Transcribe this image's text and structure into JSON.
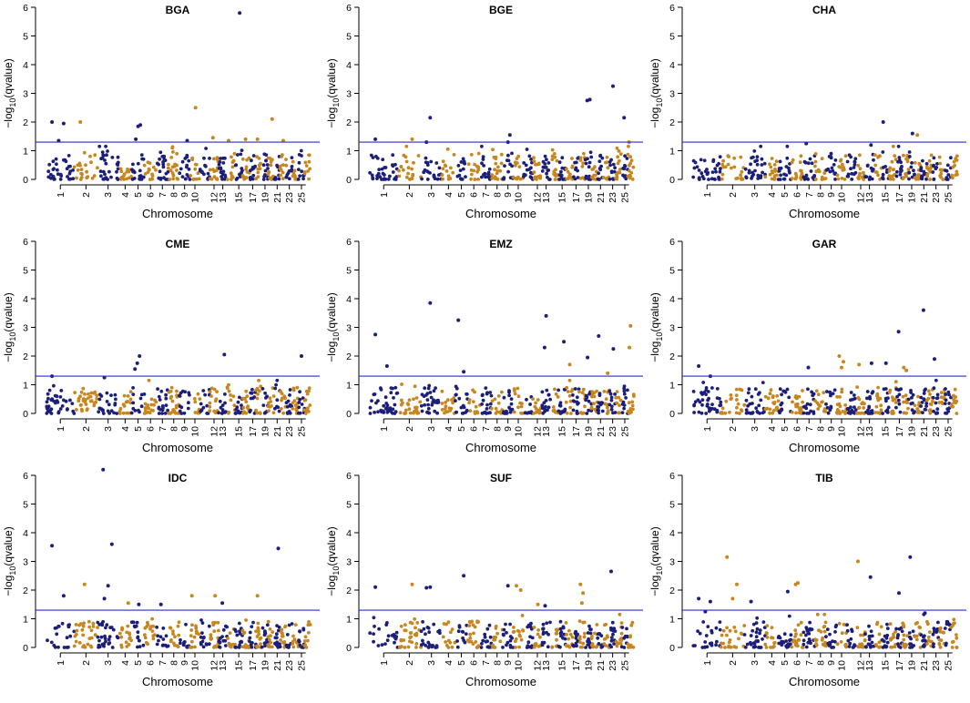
{
  "colors": {
    "navy": "#1c1f7a",
    "gold": "#c8861e",
    "threshold": "#2a2ad0"
  },
  "chart_data": {
    "type": "scatter",
    "ylabel": "−log10(qvalue)",
    "ylabel_main": "−log",
    "ylabel_sub": "10",
    "ylabel_tail": "(qvalue)",
    "xlabel": "Chromosome",
    "ylim": [
      0,
      6
    ],
    "ytick_labels": [
      "0",
      "1",
      "2",
      "3",
      "4",
      "5",
      "6"
    ],
    "xtick_labels": [
      "1",
      "2",
      "3",
      "4",
      "5",
      "6",
      "7",
      "8",
      "9",
      "10",
      "12",
      "13",
      "15",
      "17",
      "19",
      "21",
      "23",
      "25"
    ],
    "threshold": 1.3,
    "panels": [
      {
        "title": "BGA",
        "outliers": [
          {
            "chr": 1,
            "y": 2.0
          },
          {
            "chr": 1,
            "y": 1.95
          },
          {
            "chr": 1,
            "y": 1.35
          },
          {
            "chr": 2,
            "y": 2.0
          },
          {
            "chr": 5,
            "y": 1.9
          },
          {
            "chr": 5,
            "y": 1.85
          },
          {
            "chr": 5,
            "y": 1.4
          },
          {
            "chr": 9,
            "y": 1.35
          },
          {
            "chr": 10,
            "y": 2.5
          },
          {
            "chr": 12,
            "y": 1.45
          },
          {
            "chr": 14,
            "y": 1.35
          },
          {
            "chr": 15,
            "y": 5.8
          },
          {
            "chr": 16,
            "y": 1.4
          },
          {
            "chr": 18,
            "y": 1.4
          },
          {
            "chr": 20,
            "y": 2.1
          },
          {
            "chr": 22,
            "y": 1.35
          }
        ]
      },
      {
        "title": "BGE",
        "outliers": [
          {
            "chr": 1,
            "y": 1.4
          },
          {
            "chr": 2,
            "y": 1.4
          },
          {
            "chr": 3,
            "y": 2.15
          },
          {
            "chr": 3,
            "y": 1.3
          },
          {
            "chr": 9,
            "y": 1.55
          },
          {
            "chr": 9,
            "y": 1.3
          },
          {
            "chr": 19,
            "y": 2.75
          },
          {
            "chr": 19,
            "y": 2.78
          },
          {
            "chr": 23,
            "y": 3.25
          },
          {
            "chr": 25,
            "y": 2.15
          },
          {
            "chr": 26,
            "y": 1.3
          }
        ]
      },
      {
        "title": "CHA",
        "outliers": [
          {
            "chr": 15,
            "y": 2.0
          },
          {
            "chr": 19,
            "y": 1.6
          },
          {
            "chr": 20,
            "y": 1.55
          },
          {
            "chr": 7,
            "y": 1.25
          },
          {
            "chr": 13,
            "y": 1.2
          }
        ]
      },
      {
        "title": "CME",
        "outliers": [
          {
            "chr": 1,
            "y": 1.3
          },
          {
            "chr": 5,
            "y": 2.0
          },
          {
            "chr": 5,
            "y": 1.75
          },
          {
            "chr": 5,
            "y": 1.55
          },
          {
            "chr": 13,
            "y": 2.05
          },
          {
            "chr": 25,
            "y": 2.0
          },
          {
            "chr": 3,
            "y": 1.25
          }
        ]
      },
      {
        "title": "EMZ",
        "outliers": [
          {
            "chr": 1,
            "y": 2.75
          },
          {
            "chr": 1,
            "y": 1.65
          },
          {
            "chr": 3,
            "y": 3.85
          },
          {
            "chr": 5,
            "y": 3.25
          },
          {
            "chr": 5,
            "y": 1.45
          },
          {
            "chr": 13,
            "y": 3.4
          },
          {
            "chr": 13,
            "y": 2.3
          },
          {
            "chr": 15,
            "y": 2.5
          },
          {
            "chr": 16,
            "y": 1.7
          },
          {
            "chr": 19,
            "y": 1.95
          },
          {
            "chr": 21,
            "y": 2.7
          },
          {
            "chr": 23,
            "y": 2.25
          },
          {
            "chr": 26,
            "y": 3.05
          },
          {
            "chr": 26,
            "y": 2.3
          },
          {
            "chr": 22,
            "y": 1.4
          }
        ]
      },
      {
        "title": "GAR",
        "outliers": [
          {
            "chr": 1,
            "y": 1.65
          },
          {
            "chr": 1,
            "y": 1.3
          },
          {
            "chr": 7,
            "y": 1.6
          },
          {
            "chr": 10,
            "y": 2.0
          },
          {
            "chr": 10,
            "y": 1.8
          },
          {
            "chr": 10,
            "y": 1.6
          },
          {
            "chr": 12,
            "y": 1.7
          },
          {
            "chr": 13,
            "y": 1.75
          },
          {
            "chr": 15,
            "y": 1.75
          },
          {
            "chr": 17,
            "y": 2.85
          },
          {
            "chr": 18,
            "y": 1.6
          },
          {
            "chr": 18,
            "y": 1.5
          },
          {
            "chr": 21,
            "y": 3.6
          },
          {
            "chr": 23,
            "y": 1.9
          }
        ]
      },
      {
        "title": "IDC",
        "outliers": [
          {
            "chr": 1,
            "y": 3.55
          },
          {
            "chr": 1,
            "y": 1.8
          },
          {
            "chr": 2,
            "y": 2.2
          },
          {
            "chr": 3,
            "y": 6.2
          },
          {
            "chr": 3,
            "y": 3.6
          },
          {
            "chr": 3,
            "y": 2.15
          },
          {
            "chr": 3,
            "y": 1.7
          },
          {
            "chr": 4,
            "y": 1.55
          },
          {
            "chr": 5,
            "y": 1.5
          },
          {
            "chr": 7,
            "y": 1.5
          },
          {
            "chr": 10,
            "y": 1.8
          },
          {
            "chr": 12,
            "y": 1.8
          },
          {
            "chr": 13,
            "y": 1.55
          },
          {
            "chr": 18,
            "y": 1.8
          },
          {
            "chr": 21,
            "y": 3.45
          }
        ]
      },
      {
        "title": "SUF",
        "outliers": [
          {
            "chr": 1,
            "y": 2.1
          },
          {
            "chr": 2,
            "y": 2.2
          },
          {
            "chr": 3,
            "y": 2.1
          },
          {
            "chr": 3,
            "y": 2.08
          },
          {
            "chr": 5,
            "y": 2.5
          },
          {
            "chr": 9,
            "y": 2.15
          },
          {
            "chr": 10,
            "y": 2.15
          },
          {
            "chr": 10,
            "y": 2.0
          },
          {
            "chr": 12,
            "y": 1.5
          },
          {
            "chr": 13,
            "y": 1.45
          },
          {
            "chr": 18,
            "y": 2.2
          },
          {
            "chr": 18,
            "y": 1.9
          },
          {
            "chr": 18,
            "y": 1.55
          },
          {
            "chr": 23,
            "y": 2.65
          }
        ]
      },
      {
        "title": "TIB",
        "outliers": [
          {
            "chr": 1,
            "y": 1.7
          },
          {
            "chr": 1,
            "y": 1.6
          },
          {
            "chr": 1,
            "y": 1.25
          },
          {
            "chr": 2,
            "y": 3.15
          },
          {
            "chr": 2,
            "y": 2.2
          },
          {
            "chr": 2,
            "y": 1.7
          },
          {
            "chr": 3,
            "y": 1.6
          },
          {
            "chr": 5,
            "y": 1.95
          },
          {
            "chr": 6,
            "y": 2.25
          },
          {
            "chr": 6,
            "y": 2.2
          },
          {
            "chr": 12,
            "y": 3.0
          },
          {
            "chr": 13,
            "y": 2.45
          },
          {
            "chr": 17,
            "y": 1.9
          },
          {
            "chr": 19,
            "y": 3.15
          },
          {
            "chr": 21,
            "y": 1.2
          }
        ]
      }
    ]
  }
}
